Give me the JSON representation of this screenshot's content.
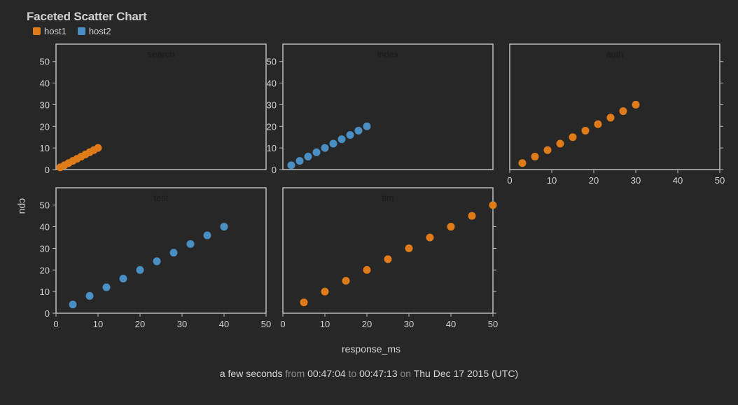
{
  "header": {
    "title": "Faceted Scatter Chart"
  },
  "footer": {
    "duration": "a few seconds",
    "from_word": "from",
    "start_time": "00:47:04",
    "to_word": "to",
    "end_time": "00:47:13",
    "on_word": "on",
    "date": "Thu Dec 17 2015 (UTC)"
  },
  "chart_data": {
    "type": "scatter",
    "title": "Faceted Scatter Chart",
    "xlabel": "response_ms",
    "ylabel": "cpu",
    "xlim": [
      0,
      50
    ],
    "ylim": [
      0,
      58
    ],
    "x_ticks": [
      0,
      10,
      20,
      30,
      40,
      50
    ],
    "y_ticks": [
      0,
      10,
      20,
      30,
      40,
      50
    ],
    "legend": {
      "placement": "top-left"
    },
    "series": [
      {
        "name": "host1",
        "color": "#e07b1a"
      },
      {
        "name": "host2",
        "color": "#4a8fc4"
      }
    ],
    "facets": [
      {
        "name": "search",
        "series": "host1",
        "points": [
          [
            1,
            1
          ],
          [
            2,
            2
          ],
          [
            3,
            3
          ],
          [
            4,
            4
          ],
          [
            5,
            5
          ],
          [
            6,
            6
          ],
          [
            7,
            7
          ],
          [
            8,
            8
          ],
          [
            9,
            9
          ],
          [
            10,
            10
          ]
        ]
      },
      {
        "name": "index",
        "series": "host2",
        "points": [
          [
            2,
            2
          ],
          [
            4,
            4
          ],
          [
            6,
            6
          ],
          [
            8,
            8
          ],
          [
            10,
            10
          ],
          [
            12,
            12
          ],
          [
            14,
            14
          ],
          [
            16,
            16
          ],
          [
            18,
            18
          ],
          [
            20,
            20
          ]
        ]
      },
      {
        "name": "auth",
        "series": "host1",
        "points": [
          [
            3,
            3
          ],
          [
            6,
            6
          ],
          [
            9,
            9
          ],
          [
            12,
            12
          ],
          [
            15,
            15
          ],
          [
            18,
            18
          ],
          [
            21,
            21
          ],
          [
            24,
            24
          ],
          [
            27,
            27
          ],
          [
            30,
            30
          ]
        ]
      },
      {
        "name": "test",
        "series": "host2",
        "points": [
          [
            4,
            4
          ],
          [
            8,
            8
          ],
          [
            12,
            12
          ],
          [
            16,
            16
          ],
          [
            20,
            20
          ],
          [
            24,
            24
          ],
          [
            28,
            28
          ],
          [
            32,
            32
          ],
          [
            36,
            36
          ],
          [
            40,
            40
          ]
        ]
      },
      {
        "name": "tim",
        "series": "host1",
        "points": [
          [
            5,
            5
          ],
          [
            10,
            10
          ],
          [
            15,
            15
          ],
          [
            20,
            20
          ],
          [
            25,
            25
          ],
          [
            30,
            30
          ],
          [
            35,
            35
          ],
          [
            40,
            40
          ],
          [
            45,
            45
          ],
          [
            50,
            50
          ]
        ]
      }
    ]
  }
}
